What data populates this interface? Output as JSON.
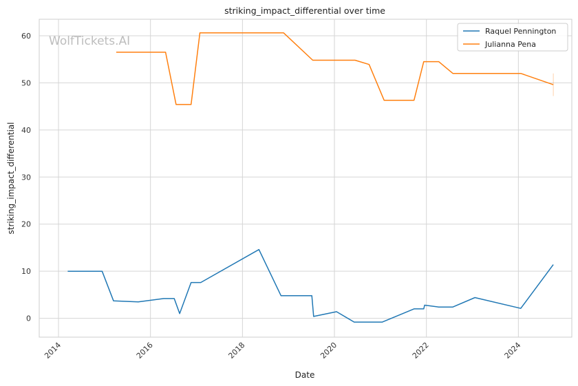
{
  "chart_data": {
    "type": "line",
    "title": "striking_impact_differential over time",
    "xlabel": "Date",
    "ylabel": "striking_impact_differential",
    "watermark": "WolfTickets.AI",
    "xlim": [
      "2013-08-01",
      "2025-03-01"
    ],
    "ylim": [
      -4,
      63.5
    ],
    "x_ticks": [
      "2014",
      "2016",
      "2018",
      "2020",
      "2022",
      "2024"
    ],
    "y_ticks": [
      0,
      10,
      20,
      30,
      40,
      50,
      60
    ],
    "grid": true,
    "legend_position": "top-right",
    "series": [
      {
        "name": "Raquel Pennington",
        "color": "#1f77b4",
        "points": [
          [
            "2014-03-15",
            10.0
          ],
          [
            "2014-12-13",
            10.0
          ],
          [
            "2015-03-14",
            3.7
          ],
          [
            "2015-09-26",
            3.5
          ],
          [
            "2016-04-16",
            4.2
          ],
          [
            "2016-07-08",
            4.2
          ],
          [
            "2016-08-20",
            1.0
          ],
          [
            "2016-11-19",
            7.6
          ],
          [
            "2017-02-04",
            7.6
          ],
          [
            "2018-05-12",
            14.6
          ],
          [
            "2018-11-03",
            4.8
          ],
          [
            "2019-07-06",
            4.8
          ],
          [
            "2019-07-20",
            0.4
          ],
          [
            "2020-01-18",
            1.4
          ],
          [
            "2020-06-06",
            -0.8
          ],
          [
            "2021-01-16",
            -0.8
          ],
          [
            "2021-09-25",
            2.0
          ],
          [
            "2021-12-11",
            2.0
          ],
          [
            "2021-12-18",
            2.8
          ],
          [
            "2022-04-09",
            2.4
          ],
          [
            "2022-07-30",
            2.4
          ],
          [
            "2023-01-21",
            4.4
          ],
          [
            "2024-01-20",
            2.1
          ],
          [
            "2024-10-05",
            11.4
          ]
        ]
      },
      {
        "name": "Julianna Pena",
        "color": "#ff7f0e",
        "points": [
          [
            "2015-04-04",
            56.5
          ],
          [
            "2016-04-30",
            56.5
          ],
          [
            "2016-07-23",
            45.4
          ],
          [
            "2016-11-19",
            45.4
          ],
          [
            "2017-01-28",
            60.6
          ],
          [
            "2018-11-24",
            60.6
          ],
          [
            "2019-07-13",
            54.8
          ],
          [
            "2020-06-13",
            54.8
          ],
          [
            "2020-10-03",
            53.9
          ],
          [
            "2021-01-30",
            46.3
          ],
          [
            "2021-09-25",
            46.3
          ],
          [
            "2021-12-11",
            54.5
          ],
          [
            "2022-04-09",
            54.5
          ],
          [
            "2022-07-30",
            52.0
          ],
          [
            "2024-01-20",
            52.0
          ],
          [
            "2024-10-05",
            49.6
          ]
        ],
        "error_bar": {
          "x": "2024-10-05",
          "low": 47.2,
          "high": 52.0
        }
      }
    ]
  }
}
